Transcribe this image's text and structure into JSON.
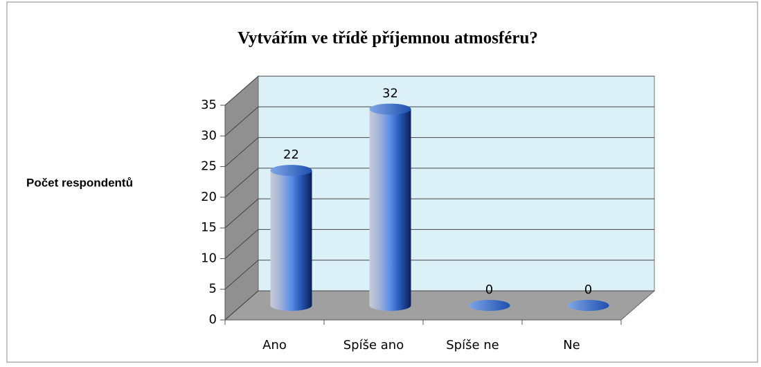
{
  "chart_data": {
    "type": "bar3d",
    "title": "Vytvářím ve třídě příjemnou atmosféru?",
    "y_label": "Počet respondentů",
    "categories": [
      "Ano",
      "Spíše ano",
      "Spíše ne",
      "Ne"
    ],
    "values": [
      22,
      32,
      0,
      0
    ],
    "ylim": [
      0,
      35
    ],
    "yticks": [
      0,
      5,
      10,
      15,
      20,
      25,
      30,
      35
    ],
    "grid": true,
    "color": "#2f6fd0"
  }
}
